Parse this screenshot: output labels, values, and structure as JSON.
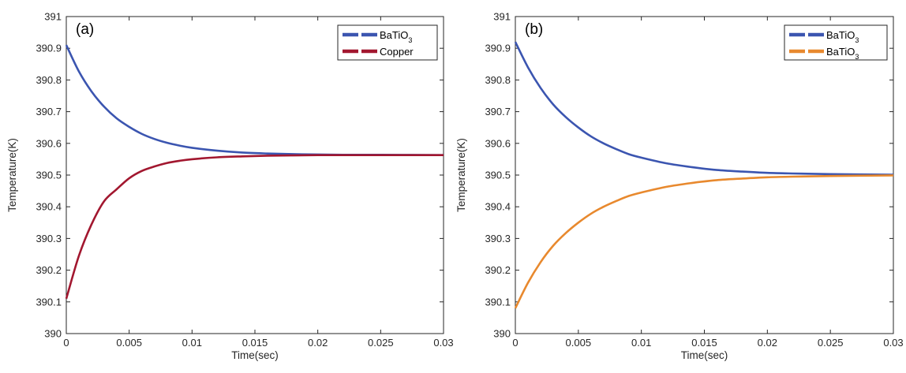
{
  "chart_data": [
    {
      "type": "line",
      "panel_label": "(a)",
      "xlabel": "Time(sec)",
      "ylabel": "Temperature(K)",
      "xlim": [
        0,
        0.03
      ],
      "ylim": [
        390,
        391
      ],
      "xticks": [
        0,
        0.005,
        0.01,
        0.015,
        0.02,
        0.025,
        0.03
      ],
      "xtick_labels": [
        "0",
        "0.005",
        "0.01",
        "0.015",
        "0.02",
        "0.025",
        "0.03"
      ],
      "yticks": [
        390,
        390.1,
        390.2,
        390.3,
        390.4,
        390.5,
        390.6,
        390.7,
        390.8,
        390.9,
        391
      ],
      "ytick_labels": [
        "390",
        "390.1",
        "390.2",
        "390.3",
        "390.4",
        "390.5",
        "390.6",
        "390.7",
        "390.8",
        "390.9",
        "391"
      ],
      "grid": false,
      "legend_position": "top-right",
      "x": [
        0,
        0.001,
        0.002,
        0.003,
        0.004,
        0.005,
        0.006,
        0.007,
        0.008,
        0.009,
        0.01,
        0.012,
        0.014,
        0.016,
        0.018,
        0.02,
        0.022,
        0.025,
        0.03
      ],
      "series": [
        {
          "name_main": "BaTiO",
          "name_sub": "3",
          "color": "#3B55B0",
          "values": [
            390.91,
            390.827,
            390.764,
            390.716,
            390.679,
            390.652,
            390.63,
            390.614,
            390.602,
            390.593,
            390.586,
            390.577,
            390.571,
            390.568,
            390.566,
            390.565,
            390.564,
            390.564,
            390.563
          ]
        },
        {
          "name_main": "Copper",
          "name_sub": "",
          "color": "#A2172F",
          "values": [
            390.11,
            390.245,
            390.344,
            390.417,
            390.455,
            390.49,
            390.513,
            390.527,
            390.538,
            390.545,
            390.55,
            390.556,
            390.559,
            390.561,
            390.562,
            390.563,
            390.563,
            390.563,
            390.563
          ]
        }
      ]
    },
    {
      "type": "line",
      "panel_label": "(b)",
      "xlabel": "Time(sec)",
      "ylabel": "Temperature(K)",
      "xlim": [
        0,
        0.03
      ],
      "ylim": [
        390,
        391
      ],
      "xticks": [
        0,
        0.005,
        0.01,
        0.015,
        0.02,
        0.025,
        0.03
      ],
      "xtick_labels": [
        "0",
        "0.005",
        "0.01",
        "0.015",
        "0.02",
        "0.025",
        "0.03"
      ],
      "yticks": [
        390,
        390.1,
        390.2,
        390.3,
        390.4,
        390.5,
        390.6,
        390.7,
        390.8,
        390.9,
        391
      ],
      "ytick_labels": [
        "390",
        "390.1",
        "390.2",
        "390.3",
        "390.4",
        "390.5",
        "390.6",
        "390.7",
        "390.8",
        "390.9",
        "391"
      ],
      "grid": false,
      "legend_position": "top-right",
      "x": [
        0,
        0.001,
        0.002,
        0.003,
        0.004,
        0.005,
        0.006,
        0.007,
        0.008,
        0.009,
        0.01,
        0.012,
        0.014,
        0.016,
        0.018,
        0.02,
        0.022,
        0.025,
        0.03
      ],
      "series": [
        {
          "name_main": "BaTiO",
          "name_sub": "3",
          "color": "#3B55B0",
          "values": [
            390.92,
            390.84,
            390.775,
            390.723,
            390.683,
            390.65,
            390.622,
            390.6,
            390.582,
            390.566,
            390.555,
            390.537,
            390.525,
            390.516,
            390.511,
            390.507,
            390.505,
            390.503,
            390.501
          ]
        },
        {
          "name_main": "BaTiO",
          "name_sub": "3",
          "color": "#E8892E",
          "values": [
            390.08,
            390.16,
            390.225,
            390.277,
            390.317,
            390.35,
            390.378,
            390.4,
            390.418,
            390.434,
            390.445,
            390.463,
            390.475,
            390.484,
            390.489,
            390.493,
            390.495,
            390.497,
            390.499
          ]
        }
      ]
    }
  ]
}
